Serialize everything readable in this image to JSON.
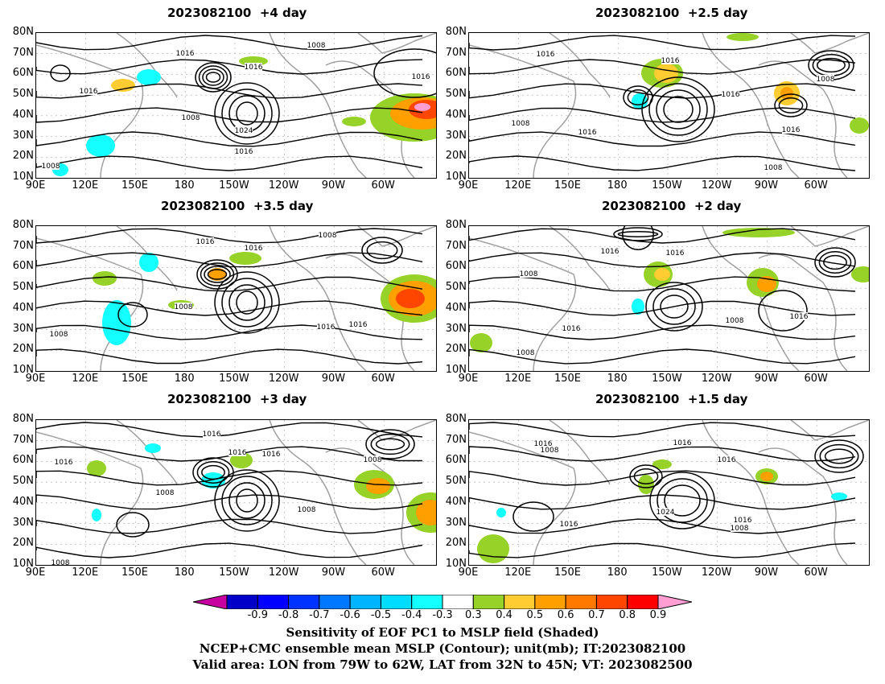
{
  "panels": [
    {
      "title": "2023082100  +4 day",
      "contour_labels": [
        "1016",
        "1008",
        "1016",
        "1016",
        "1008",
        "1024",
        "1016",
        "1016",
        "1008"
      ]
    },
    {
      "title": "2023082100  +2.5 day",
      "contour_labels": [
        "1016",
        "1016",
        "1008",
        "1008",
        "1016",
        "1016",
        "1016",
        "1008"
      ]
    },
    {
      "title": "2023082100  +3.5 day",
      "contour_labels": [
        "1016",
        "1016",
        "1008",
        "1008",
        "1008",
        "1016",
        "1016"
      ]
    },
    {
      "title": "2023082100  +2 day",
      "contour_labels": [
        "1016",
        "1016",
        "1008",
        "1016",
        "1008",
        "1016",
        "1008"
      ]
    },
    {
      "title": "2023082100  +3 day",
      "contour_labels": [
        "1016",
        "1016",
        "1016",
        "1016",
        "1008",
        "1008",
        "1008",
        "1008"
      ]
    },
    {
      "title": "2023082100  +1.5 day",
      "contour_labels": [
        "1016",
        "1008",
        "1016",
        "1016",
        "1024",
        "1016",
        "1016",
        "1008"
      ]
    }
  ],
  "axes": {
    "lat_ticks": [
      "80N",
      "70N",
      "60N",
      "50N",
      "40N",
      "30N",
      "20N",
      "10N"
    ],
    "lon_ticks": [
      "90E",
      "120E",
      "150E",
      "180",
      "150W",
      "120W",
      "90W",
      "60W"
    ]
  },
  "colorbar": {
    "ticks": [
      "-0.9",
      "-0.8",
      "-0.7",
      "-0.6",
      "-0.5",
      "-0.4",
      "-0.3",
      "0.3",
      "0.4",
      "0.5",
      "0.6",
      "0.7",
      "0.8",
      "0.9"
    ],
    "colors": [
      "#0000c8",
      "#0000ff",
      "#0033ff",
      "#0078ff",
      "#00b4ff",
      "#00dcff",
      "#14ffff",
      "#ffffff",
      "#96d228",
      "#ffcd32",
      "#ffa000",
      "#ff7800",
      "#ff4600",
      "#ff0000"
    ],
    "under_color": "#c800a0",
    "over_color": "#ff9ed2"
  },
  "captions": [
    "Sensitivity of EOF PC1 to MSLP field (Shaded)",
    "NCEP+CMC ensemble mean MSLP (Contour); unit(mb); IT:2023082100",
    "Valid area: LON from 79W to 62W, LAT from 32N to 45N; VT: 2023082500"
  ]
}
